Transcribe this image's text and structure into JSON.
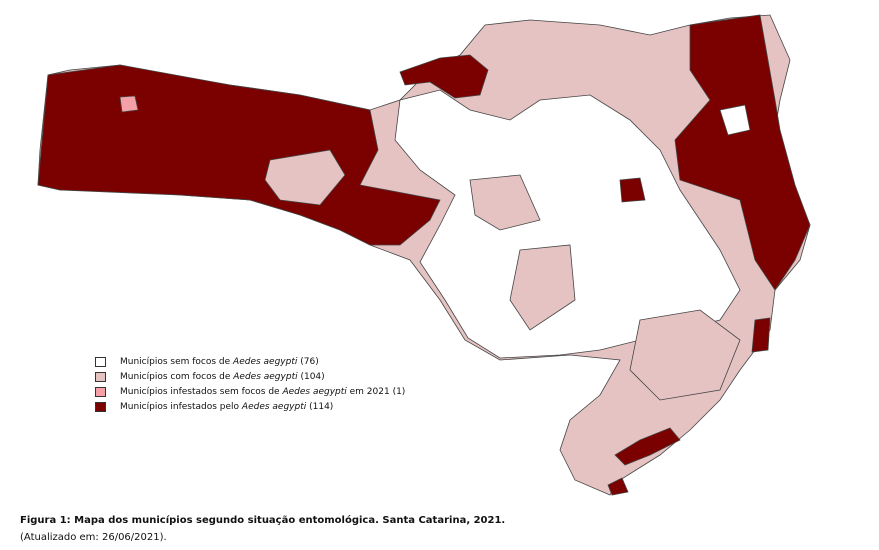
{
  "legend": {
    "items": [
      {
        "prefix": "Municípios sem focos de ",
        "species": "Aedes aegypti",
        "suffix": " (76)",
        "color": "#ffffff"
      },
      {
        "prefix": "Municípios com focos de ",
        "species": "Aedes aegypti",
        "suffix": " (104)",
        "color": "#e6c3c3"
      },
      {
        "prefix": "Municípios infestados sem focos de ",
        "species": "Aedes aegypti",
        "suffix": " em 2021 (1)",
        "color": "#f4a0a8"
      },
      {
        "prefix": "Municípios infestados pelo ",
        "species": "Aedes aegypti",
        "suffix": " (114)",
        "color": "#7b0000"
      }
    ]
  },
  "caption": {
    "title": "Figura 1: Mapa dos municípios segundo situação entomológica. Santa Catarina, 2021.",
    "updated": "(Atualizado em: 26/06/2021)."
  }
}
